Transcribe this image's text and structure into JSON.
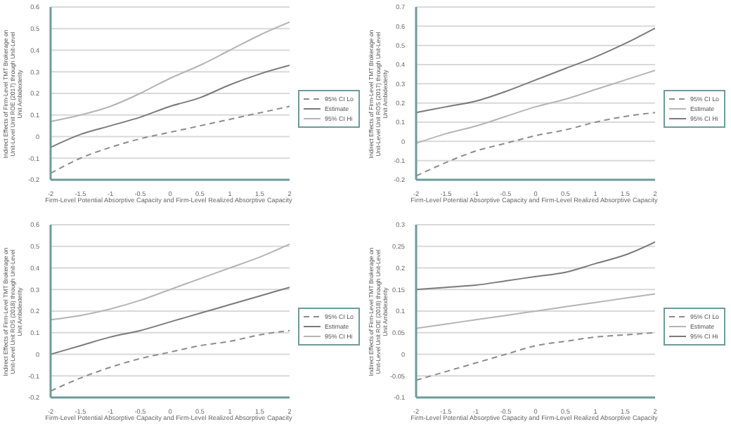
{
  "chart_data": [
    {
      "type": "line",
      "ylabel": "Indirect Effects of Firm-Level TMT Brokerage on Unit-Level Unit ROE (2017) through Unit-Level Unit Ambidexterity",
      "xlabel": "Firm-Level Potential Absorptive Capacity and Firm-Level Realized Absorptive Capacity",
      "x": [
        -2,
        -1.5,
        -1,
        -0.5,
        0,
        0.5,
        1,
        1.5,
        2
      ],
      "xlim": [
        -2,
        2
      ],
      "xticks": [
        -2,
        -1.5,
        -1,
        -0.5,
        0,
        0.5,
        1,
        1.5,
        2
      ],
      "ylim": [
        -0.2,
        0.6
      ],
      "yticks": [
        -0.2,
        -0.1,
        0,
        0.1,
        0.2,
        0.3,
        0.4,
        0.5,
        0.6
      ],
      "grid": "y",
      "legend": "right",
      "series": [
        {
          "name": "95% CI Lo",
          "color": "#8c8c8c",
          "line_style": "dashed",
          "values": [
            -0.17,
            -0.1,
            -0.05,
            -0.01,
            0.02,
            0.05,
            0.08,
            0.11,
            0.14
          ]
        },
        {
          "name": "Estimate",
          "color": "#7a7a7a",
          "line_style": "solid",
          "values": [
            -0.05,
            0.01,
            0.05,
            0.09,
            0.14,
            0.18,
            0.24,
            0.29,
            0.33
          ]
        },
        {
          "name": "95% CI Hi",
          "color": "#b4b4b4",
          "line_style": "solid",
          "values": [
            0.07,
            0.1,
            0.14,
            0.2,
            0.27,
            0.33,
            0.4,
            0.47,
            0.53
          ]
        }
      ]
    },
    {
      "type": "line",
      "ylabel": "Indirect Effects of Firm-Level TMT Brokerage on Unit-Level Unit ROS (2017) through Unit-Level Unit Ambidexterity",
      "xlabel": "Firm-Level Potential Absorptive Capacity and Firm-Level Realized Absorptive Capacity",
      "x": [
        -2,
        -1.5,
        -1,
        -0.5,
        0,
        0.5,
        1,
        1.5,
        2
      ],
      "xlim": [
        -2,
        2
      ],
      "xticks": [
        -2,
        -1.5,
        -1,
        -0.5,
        0,
        0.5,
        1,
        1.5,
        2
      ],
      "ylim": [
        -0.2,
        0.7
      ],
      "yticks": [
        -0.2,
        -0.1,
        0,
        0.1,
        0.2,
        0.3,
        0.4,
        0.5,
        0.6,
        0.7
      ],
      "grid": "y",
      "legend": "right",
      "series": [
        {
          "name": "95% CI Lo",
          "color": "#8c8c8c",
          "line_style": "dashed",
          "values": [
            -0.18,
            -0.11,
            -0.05,
            -0.01,
            0.03,
            0.06,
            0.1,
            0.13,
            0.15
          ]
        },
        {
          "name": "Estimate",
          "color": "#b4b4b4",
          "line_style": "solid",
          "values": [
            -0.01,
            0.04,
            0.08,
            0.13,
            0.18,
            0.22,
            0.27,
            0.32,
            0.37
          ]
        },
        {
          "name": "95% CI Hi",
          "color": "#7a7a7a",
          "line_style": "solid",
          "values": [
            0.15,
            0.18,
            0.21,
            0.26,
            0.32,
            0.38,
            0.44,
            0.51,
            0.59
          ]
        }
      ]
    },
    {
      "type": "line",
      "ylabel": "Indirect Effects of Firm-Level TMT Brokerage on Unit-Level Unit ROS (2018) through Unit-Level Unit Ambidexterity",
      "xlabel": "Firm-Level Potential Absorptive Capacity and Firm-Level Realized Absorptive Capacity",
      "x": [
        -2,
        -1.5,
        -1,
        -0.5,
        0,
        0.5,
        1,
        1.5,
        2
      ],
      "xlim": [
        -2,
        2
      ],
      "xticks": [
        -2,
        -1.5,
        -1,
        -0.5,
        0,
        0.5,
        1,
        1.5,
        2
      ],
      "ylim": [
        -0.2,
        0.6
      ],
      "yticks": [
        -0.2,
        -0.1,
        0,
        0.1,
        0.2,
        0.3,
        0.4,
        0.5,
        0.6
      ],
      "grid": "y",
      "legend": "right",
      "series": [
        {
          "name": "95% CI Lo",
          "color": "#8c8c8c",
          "line_style": "dashed",
          "values": [
            -0.17,
            -0.11,
            -0.06,
            -0.02,
            0.01,
            0.04,
            0.06,
            0.09,
            0.11
          ]
        },
        {
          "name": "Estimate",
          "color": "#7a7a7a",
          "line_style": "solid",
          "values": [
            0,
            0.04,
            0.08,
            0.11,
            0.15,
            0.19,
            0.23,
            0.27,
            0.31
          ]
        },
        {
          "name": "95% CI Hi",
          "color": "#b4b4b4",
          "line_style": "solid",
          "values": [
            0.16,
            0.18,
            0.21,
            0.25,
            0.3,
            0.35,
            0.4,
            0.45,
            0.51
          ]
        }
      ]
    },
    {
      "type": "line",
      "ylabel": "Indirect Effects of Firm-Level TMT Brokerage on Unit-Level Unit ROE (2018) through Unit-Level Unit Ambidexterity",
      "xlabel": "Firm-Level Potential Absorptive Capacity and Firm-Level Realized Absorptive Capacity",
      "x": [
        -2,
        -1.5,
        -1,
        -0.5,
        0,
        0.5,
        1,
        1.5,
        2
      ],
      "xlim": [
        -2,
        2
      ],
      "xticks": [
        -2,
        -1.5,
        -1,
        -0.5,
        0,
        0.5,
        1,
        1.5,
        2
      ],
      "ylim": [
        -0.1,
        0.3
      ],
      "yticks": [
        -0.1,
        -0.05,
        0,
        0.05,
        0.1,
        0.15,
        0.2,
        0.25,
        0.3
      ],
      "grid": "y",
      "legend": "right",
      "series": [
        {
          "name": "95% CI Lo",
          "color": "#8c8c8c",
          "line_style": "dashed",
          "values": [
            -0.06,
            -0.04,
            -0.02,
            0,
            0.02,
            0.03,
            0.04,
            0.045,
            0.05
          ]
        },
        {
          "name": "Estimate",
          "color": "#b4b4b4",
          "line_style": "solid",
          "values": [
            0.06,
            0.07,
            0.08,
            0.09,
            0.1,
            0.11,
            0.12,
            0.13,
            0.14
          ]
        },
        {
          "name": "95% CI Hi",
          "color": "#7a7a7a",
          "line_style": "solid",
          "values": [
            0.15,
            0.155,
            0.16,
            0.17,
            0.18,
            0.19,
            0.21,
            0.23,
            0.26
          ]
        }
      ]
    }
  ]
}
